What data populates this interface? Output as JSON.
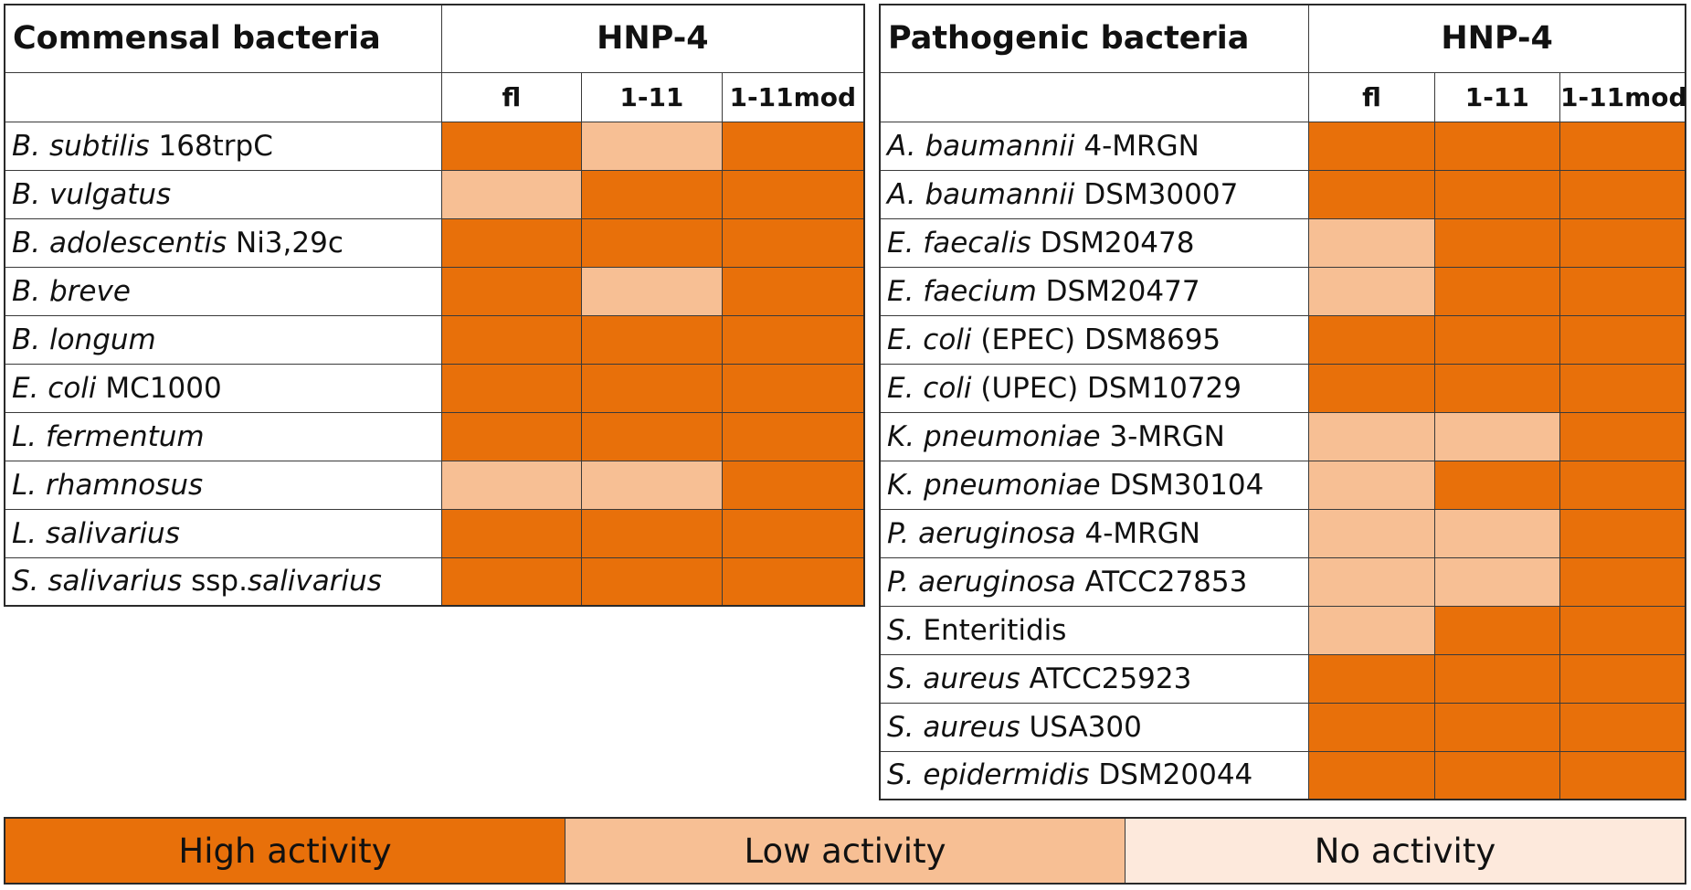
{
  "legend": {
    "high": {
      "label": "High activity",
      "color": "#e8700a"
    },
    "low": {
      "label": "Low activity",
      "color": "#f7bf94"
    },
    "none": {
      "label": "No activity",
      "color": "#fde9dc"
    }
  },
  "chart_data": [
    {
      "type": "heatmap",
      "title": "Commensal bacteria",
      "group_header": "HNP-4",
      "columns": [
        "fl",
        "1-11",
        "1-11mod"
      ],
      "rows": [
        {
          "species": "B. subtilis",
          "strain": "168trpC",
          "values": [
            "high",
            "low",
            "high"
          ]
        },
        {
          "species": "B. vulgatus",
          "strain": "",
          "values": [
            "low",
            "high",
            "high"
          ]
        },
        {
          "species": "B. adolescentis",
          "strain": "Ni3,29c",
          "values": [
            "high",
            "high",
            "high"
          ]
        },
        {
          "species": "B. breve",
          "strain": "",
          "values": [
            "high",
            "low",
            "high"
          ]
        },
        {
          "species": "B. longum",
          "strain": "",
          "values": [
            "high",
            "high",
            "high"
          ]
        },
        {
          "species": "E. coli",
          "strain": "MC1000",
          "values": [
            "high",
            "high",
            "high"
          ]
        },
        {
          "species": "L. fermentum",
          "strain": "",
          "values": [
            "high",
            "high",
            "high"
          ]
        },
        {
          "species": "L. rhamnosus",
          "strain": "",
          "values": [
            "low",
            "low",
            "high"
          ]
        },
        {
          "species": "L. salivarius",
          "strain": "",
          "values": [
            "high",
            "high",
            "high"
          ]
        },
        {
          "species": "S. salivarius",
          "strain": "ssp.",
          "strain2": "salivarius",
          "values": [
            "high",
            "high",
            "high"
          ]
        }
      ]
    },
    {
      "type": "heatmap",
      "title": "Pathogenic bacteria",
      "group_header": "HNP-4",
      "columns": [
        "fl",
        "1-11",
        "1-11mod"
      ],
      "rows": [
        {
          "species": "A. baumannii",
          "strain": "4-MRGN",
          "values": [
            "high",
            "high",
            "high"
          ]
        },
        {
          "species": "A. baumannii",
          "strain": "DSM30007",
          "values": [
            "high",
            "high",
            "high"
          ]
        },
        {
          "species": "E. faecalis",
          "strain": "DSM20478",
          "values": [
            "low",
            "high",
            "high"
          ]
        },
        {
          "species": "E. faecium",
          "strain": "DSM20477",
          "values": [
            "low",
            "high",
            "high"
          ]
        },
        {
          "species": "E. coli",
          "strain": "(EPEC) DSM8695",
          "values": [
            "high",
            "high",
            "high"
          ]
        },
        {
          "species": "E. coli",
          "strain": "(UPEC) DSM10729",
          "values": [
            "high",
            "high",
            "high"
          ]
        },
        {
          "species": "K. pneumoniae",
          "strain": "3-MRGN",
          "values": [
            "low",
            "low",
            "high"
          ]
        },
        {
          "species": "K. pneumoniae",
          "strain": "DSM30104",
          "values": [
            "low",
            "high",
            "high"
          ]
        },
        {
          "species": "P. aeruginosa",
          "strain": "4-MRGN",
          "values": [
            "low",
            "low",
            "high"
          ]
        },
        {
          "species": "P. aeruginosa",
          "strain": "ATCC27853",
          "values": [
            "low",
            "low",
            "high"
          ]
        },
        {
          "species": "S.",
          "strain": "Enteritidis",
          "values": [
            "low",
            "high",
            "high"
          ]
        },
        {
          "species": "S. aureus",
          "strain": "ATCC25923",
          "values": [
            "high",
            "high",
            "high"
          ]
        },
        {
          "species": "S. aureus",
          "strain": "USA300",
          "values": [
            "high",
            "high",
            "high"
          ]
        },
        {
          "species": "S. epidermidis",
          "strain": "DSM20044",
          "values": [
            "high",
            "high",
            "high"
          ]
        }
      ]
    }
  ]
}
